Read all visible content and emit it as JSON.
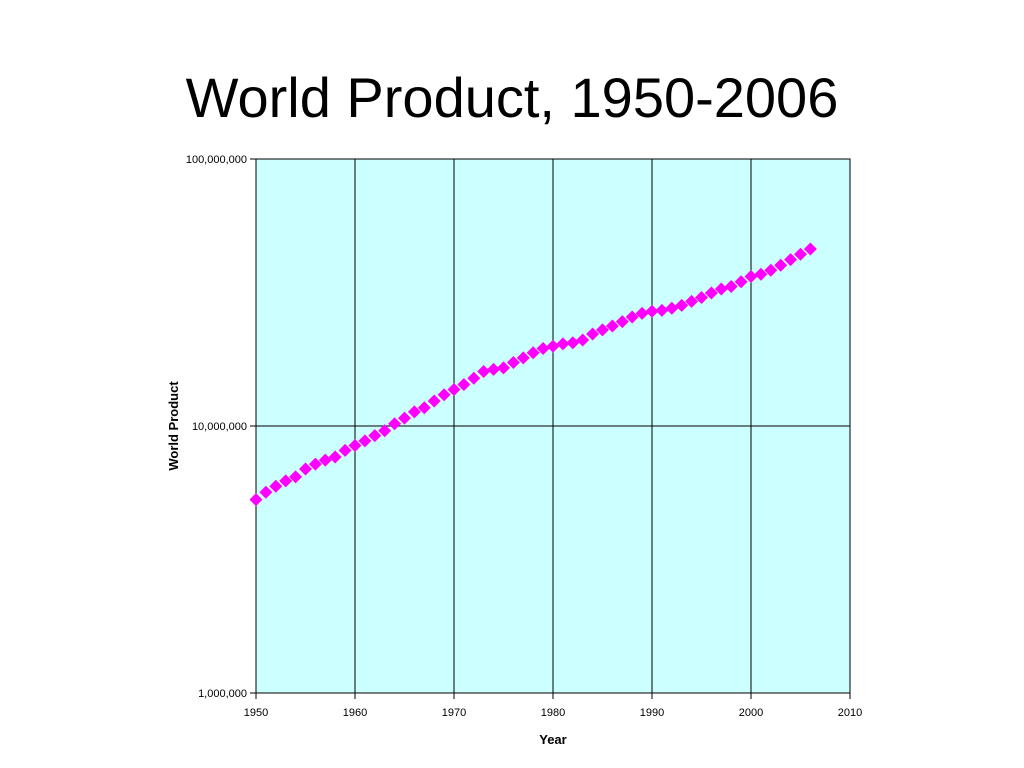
{
  "slide": {
    "title": "World Product, 1950-2006"
  },
  "chart_data": {
    "type": "scatter",
    "xlabel": "Year",
    "ylabel": "World Product",
    "xlim": [
      1950,
      2010
    ],
    "ylim": [
      1000000,
      100000000
    ],
    "yscale": "log",
    "x_ticks": [
      1950,
      1960,
      1970,
      1980,
      1990,
      2000,
      2010
    ],
    "x_tick_labels": [
      "1950",
      "1960",
      "1970",
      "1980",
      "1990",
      "2000",
      "2010"
    ],
    "y_ticks": [
      1000000,
      10000000,
      100000000
    ],
    "y_tick_labels": [
      "1,000,000",
      "10,000,000",
      "100,000,000"
    ],
    "grid": "vertical and horizontal major gridlines",
    "legend": "none",
    "colors": {
      "plot_background": "#ccffff",
      "marker": "#ff00ff",
      "gridline": "#000000"
    },
    "marker": "diamond",
    "series": [
      {
        "x": [
          1950,
          1951,
          1952,
          1953,
          1954,
          1955,
          1956,
          1957,
          1958,
          1959,
          1960,
          1961,
          1962,
          1963,
          1964,
          1965,
          1966,
          1967,
          1968,
          1969,
          1970,
          1971,
          1972,
          1973,
          1974,
          1975,
          1976,
          1977,
          1978,
          1979,
          1980,
          1981,
          1982,
          1983,
          1984,
          1985,
          1986,
          1987,
          1988,
          1989,
          1990,
          1991,
          1992,
          1993,
          1994,
          1995,
          1996,
          1997,
          1998,
          1999,
          2000,
          2001,
          2002,
          2003,
          2004,
          2005,
          2006
        ],
        "values": [
          5300000,
          5650000,
          5950000,
          6230000,
          6450000,
          6900000,
          7200000,
          7450000,
          7650000,
          8100000,
          8450000,
          8800000,
          9200000,
          9600000,
          10200000,
          10700000,
          11300000,
          11700000,
          12400000,
          13100000,
          13700000,
          14300000,
          15100000,
          16000000,
          16300000,
          16500000,
          17300000,
          18000000,
          18800000,
          19500000,
          19900000,
          20300000,
          20500000,
          21000000,
          22100000,
          22900000,
          23700000,
          24600000,
          25600000,
          26400000,
          26900000,
          27100000,
          27600000,
          28300000,
          29300000,
          30300000,
          31500000,
          32600000,
          33300000,
          34700000,
          36300000,
          37000000,
          38300000,
          40000000,
          42000000,
          44000000,
          46000000
        ]
      }
    ]
  }
}
